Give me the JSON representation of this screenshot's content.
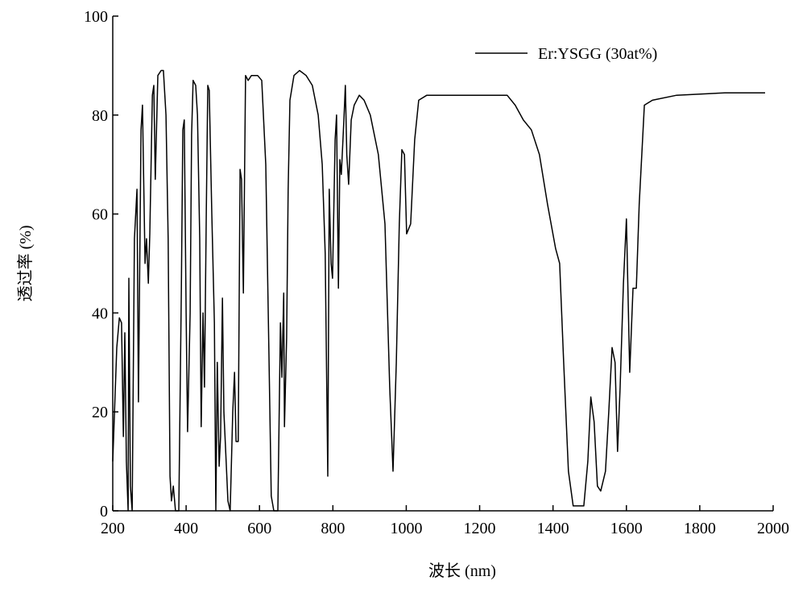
{
  "chart_data": {
    "type": "line",
    "xlabel": "波长 (nm)",
    "ylabel": "透过率 (%)",
    "xlim": [
      200,
      2000
    ],
    "xticks": [
      200,
      400,
      600,
      800,
      1000,
      1200,
      1400,
      1600,
      1800,
      2000
    ],
    "ylim": [
      0,
      100
    ],
    "yticks": [
      0,
      20,
      40,
      60,
      80,
      100
    ],
    "legend": "top-right",
    "x": [
      200,
      211,
      218,
      224,
      229,
      233,
      237,
      242,
      244,
      248,
      253,
      259,
      266,
      270,
      277,
      281,
      288,
      292,
      297,
      301,
      308,
      312,
      316,
      323,
      332,
      338,
      345,
      351,
      356,
      360,
      365,
      371,
      380,
      387,
      391,
      395,
      400,
      404,
      411,
      415,
      419,
      426,
      431,
      437,
      441,
      446,
      450,
      455,
      459,
      463,
      470,
      477,
      481,
      485,
      490,
      494,
      499,
      503,
      509,
      514,
      520,
      527,
      532,
      536,
      542,
      547,
      551,
      556,
      562,
      569,
      578,
      595,
      606,
      617,
      626,
      632,
      639,
      650,
      657,
      661,
      666,
      668,
      674,
      678,
      683,
      694,
      709,
      727,
      744,
      760,
      771,
      779,
      786,
      790,
      795,
      799,
      806,
      810,
      815,
      819,
      823,
      830,
      834,
      838,
      843,
      850,
      858,
      872,
      885,
      902,
      924,
      942,
      955,
      964,
      973,
      981,
      988,
      995,
      1001,
      1012,
      1023,
      1034,
      1056,
      1122,
      1210,
      1275,
      1297,
      1319,
      1341,
      1363,
      1385,
      1407,
      1418,
      1429,
      1442,
      1455,
      1484,
      1495,
      1503,
      1512,
      1521,
      1530,
      1543,
      1552,
      1561,
      1569,
      1576,
      1583,
      1592,
      1600,
      1609,
      1618,
      1627,
      1635,
      1649,
      1671,
      1737,
      1868,
      1978
    ],
    "series": [
      {
        "name": "Er:YSGG (30at%)",
        "color": "#000000",
        "values": [
          10,
          33,
          39,
          38,
          15,
          36,
          10,
          0,
          47,
          5,
          0,
          55,
          65,
          22,
          77,
          82,
          50,
          55,
          46,
          56,
          84,
          86,
          67,
          88,
          89,
          89,
          80,
          55,
          7,
          2,
          5,
          0,
          0,
          45,
          77,
          79,
          40,
          16,
          40,
          76,
          87,
          86,
          80,
          55,
          17,
          40,
          25,
          61,
          86,
          85,
          60,
          38,
          0,
          30,
          9,
          15,
          43,
          20,
          10,
          2,
          0,
          20,
          28,
          14,
          14,
          69,
          67,
          44,
          88,
          87,
          88,
          88,
          87,
          70,
          30,
          3,
          0,
          0,
          38,
          27,
          44,
          17,
          35,
          65,
          83,
          88,
          89,
          88,
          86,
          80,
          70,
          52,
          7,
          65,
          50,
          47,
          75,
          80,
          45,
          71,
          68,
          79,
          86,
          72,
          66,
          79,
          82,
          84,
          83,
          80,
          72,
          58,
          25,
          8,
          30,
          58,
          73,
          72,
          56,
          58,
          75,
          83,
          84,
          84,
          84,
          84,
          82,
          79,
          77,
          72,
          62,
          53,
          50,
          30,
          8,
          1,
          1,
          10,
          23,
          18,
          5,
          4,
          8,
          20,
          33,
          30,
          12,
          25,
          46,
          59,
          28,
          45,
          45,
          62,
          82,
          83,
          84,
          84.5,
          84.5
        ]
      }
    ]
  }
}
